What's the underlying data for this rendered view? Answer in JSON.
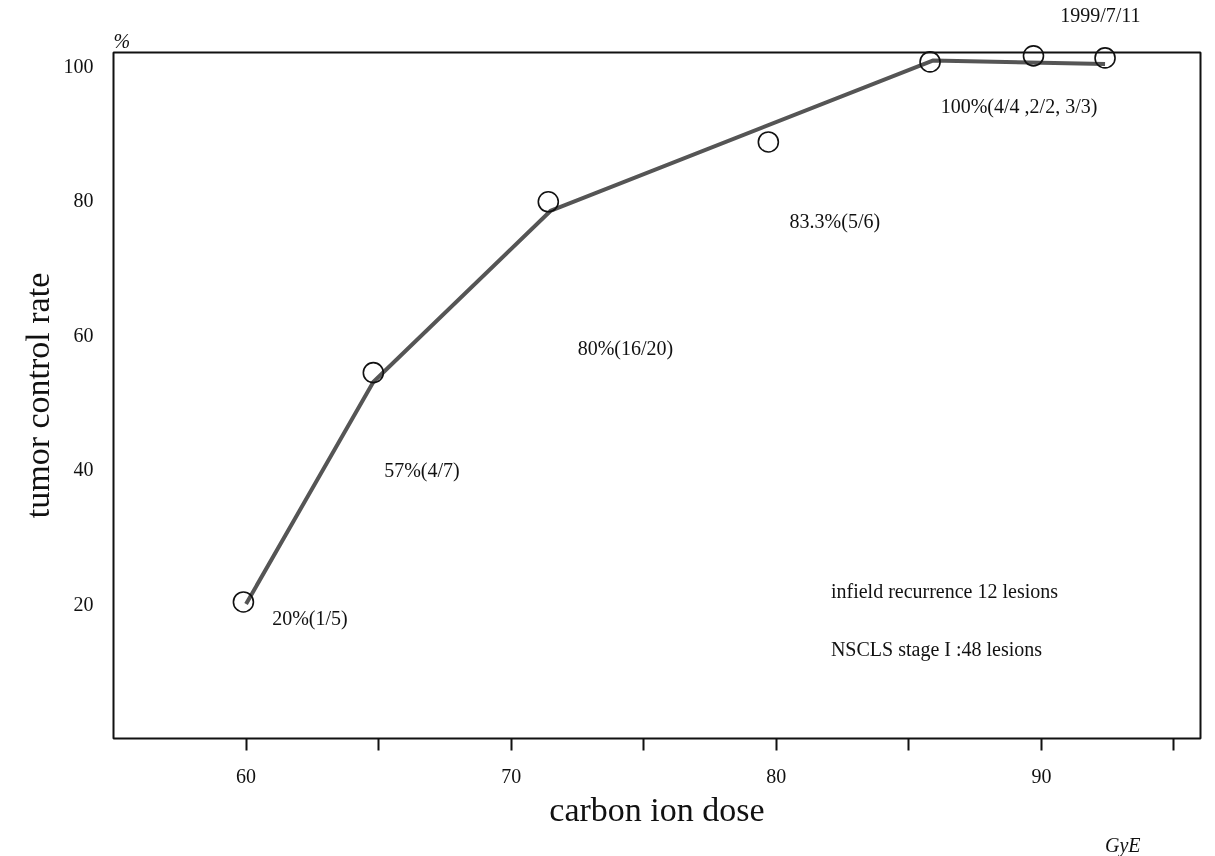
{
  "chart_data": {
    "type": "scatter",
    "xlabel": "carbon ion dose",
    "ylabel": "tumor control rate",
    "xlim": [
      55,
      96
    ],
    "ylim": [
      0,
      102
    ],
    "xticks": [
      60,
      {
        "value": 65,
        "label": null
      },
      70,
      {
        "value": 75,
        "label": null
      },
      80,
      {
        "value": 85,
        "label": null
      },
      90,
      {
        "value": 95,
        "label": null
      }
    ],
    "yticks": [
      20,
      40,
      60,
      80,
      100
    ],
    "grid": false,
    "series": [
      {
        "color": "#111111",
        "marker": "circle",
        "x": [
          59.9,
          64.8,
          71.4,
          79.7,
          85.8,
          89.7,
          92.4
        ],
        "values": [
          20.3,
          54.4,
          79.8,
          88.7,
          100.6,
          101.5,
          101.2
        ]
      },
      {
        "type": "line",
        "color": "#555555",
        "marker": "none",
        "x": [
          60,
          64.8,
          71.5,
          85.9,
          92.4
        ],
        "values": [
          20,
          53,
          78.5,
          100.8,
          100.3
        ]
      }
    ],
    "annotations": [
      "%",
      "1999/7/11",
      "infield recurrence 12 lesions",
      "NSCLS stage I :48 lesions",
      "GyE",
      "20%(1/5)",
      "57%(4/7)",
      "80%(16/20)",
      "83.3%(5/6)",
      "100%(4/4 ,2/2,  3/3)"
    ]
  }
}
